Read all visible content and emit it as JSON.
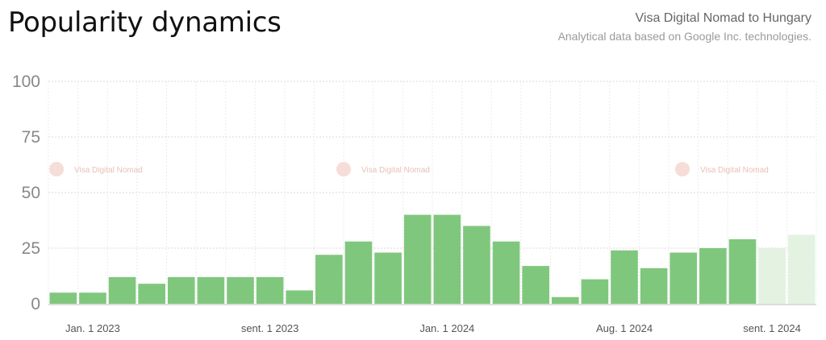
{
  "header": {
    "title": "Popularity dynamics",
    "subtitle": "Visa Digital Nomad to Hungary",
    "source_note": "Analytical data based on Google Inc. technologies."
  },
  "watermark": {
    "text": "Visa Digital Nomad"
  },
  "colors": {
    "bar": "#80c77e",
    "bar_forecast": "#e3f2e1",
    "grid": "#d9d9d9",
    "axis": "#bbbbbb"
  },
  "chart_data": {
    "type": "bar",
    "title": "Popularity dynamics",
    "ylim": [
      0,
      100
    ],
    "y_ticks": [
      0,
      25,
      50,
      75,
      100
    ],
    "x_tick_labels": [
      {
        "index": 1,
        "label": "Jan. 1 2023"
      },
      {
        "index": 7,
        "label": "sent. 1 2023"
      },
      {
        "index": 13,
        "label": "Jan. 1 2024"
      },
      {
        "index": 19,
        "label": "Aug. 1 2024"
      },
      {
        "index": 24,
        "label": "sent. 1 2024"
      }
    ],
    "values": [
      5,
      5,
      12,
      9,
      12,
      12,
      12,
      12,
      6,
      22,
      28,
      23,
      40,
      40,
      35,
      28,
      17,
      3,
      11,
      24,
      16,
      23,
      25,
      29,
      25,
      31
    ],
    "forecast_from_index": 24
  }
}
